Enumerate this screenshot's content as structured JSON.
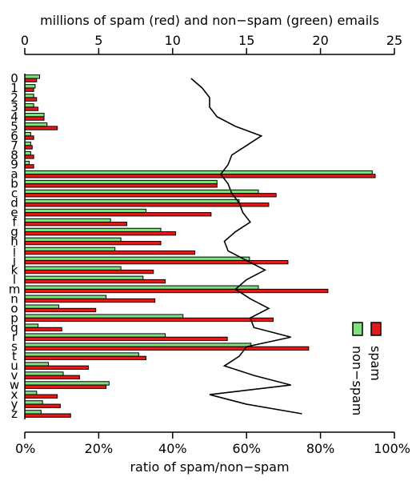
{
  "chart_data": {
    "type": "bar",
    "orientation": "horizontal",
    "categories": [
      "0",
      "1",
      "2",
      "3",
      "4",
      "5",
      "6",
      "7",
      "8",
      "9",
      "a",
      "b",
      "c",
      "d",
      "e",
      "f",
      "g",
      "h",
      "i",
      "j",
      "k",
      "l",
      "m",
      "n",
      "o",
      "p",
      "q",
      "r",
      "s",
      "t",
      "u",
      "v",
      "w",
      "x",
      "y",
      "z"
    ],
    "top_axis": {
      "label": "millions of spam (red) and non−spam (green) emails",
      "range": [
        0,
        25
      ],
      "ticks": [
        "0",
        "5",
        "10",
        "15",
        "20",
        "25"
      ]
    },
    "bottom_axis": {
      "label": "ratio of spam/non−spam",
      "range": [
        0,
        1
      ],
      "ticks": [
        "0%",
        "20%",
        "40%",
        "60%",
        "80%",
        "100%"
      ]
    },
    "series": [
      {
        "name": "non−spam",
        "color": "#7fe07f",
        "axis": "top",
        "values": [
          1.0,
          0.7,
          0.6,
          0.6,
          1.3,
          1.5,
          0.4,
          0.4,
          0.4,
          0.3,
          23.5,
          13.0,
          15.8,
          14.5,
          8.2,
          5.8,
          9.2,
          6.5,
          6.1,
          15.2,
          6.5,
          8.0,
          15.8,
          5.5,
          2.3,
          10.7,
          0.9,
          9.5,
          15.3,
          7.7,
          1.6,
          2.6,
          5.7,
          0.8,
          1.2,
          1.1
        ]
      },
      {
        "name": "spam",
        "color": "#e01b1b",
        "axis": "top",
        "values": [
          0.8,
          0.6,
          0.8,
          0.9,
          1.3,
          2.2,
          0.6,
          0.5,
          0.6,
          0.6,
          23.7,
          13.0,
          17.0,
          16.5,
          12.6,
          6.9,
          10.2,
          9.2,
          11.5,
          17.8,
          8.7,
          9.5,
          20.5,
          8.8,
          4.8,
          16.8,
          2.5,
          13.7,
          19.2,
          8.2,
          4.3,
          3.7,
          5.5,
          2.2,
          2.4,
          3.1
        ]
      },
      {
        "name": "ratio of spam/non−spam",
        "color": "#000000",
        "axis": "bottom",
        "type": "line",
        "values": [
          0.45,
          0.48,
          0.5,
          0.5,
          0.52,
          0.57,
          0.64,
          0.6,
          0.56,
          0.55,
          0.53,
          0.55,
          0.56,
          0.58,
          0.59,
          0.61,
          0.57,
          0.54,
          0.55,
          0.6,
          0.65,
          0.6,
          0.57,
          0.61,
          0.66,
          0.61,
          0.62,
          0.72,
          0.6,
          0.58,
          0.54,
          0.62,
          0.72,
          0.5,
          0.6,
          0.75
        ]
      }
    ],
    "legend": {
      "position": "right",
      "entries": [
        {
          "label": "spam",
          "color": "#e01b1b"
        },
        {
          "label": "non−spam",
          "color": "#7fe07f"
        }
      ]
    },
    "grid": false
  }
}
